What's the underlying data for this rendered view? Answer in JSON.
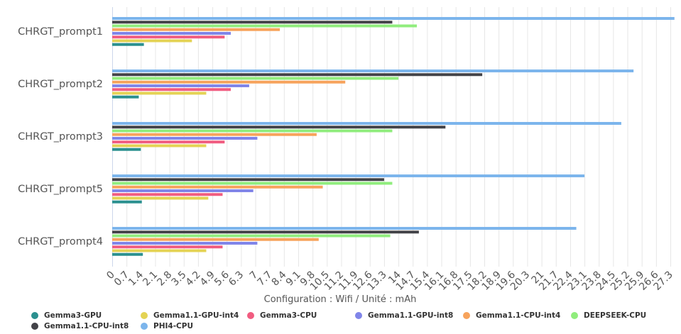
{
  "chart_data": {
    "type": "bar",
    "orientation": "horizontal",
    "title": "",
    "xlabel": "Configuration : Wifi / Unité : mAh",
    "ylabel": "",
    "xlim": [
      0,
      27.3
    ],
    "x_ticks": [
      "0",
      "0.7",
      "1.4",
      "2.1",
      "2.8",
      "3.5",
      "4.2",
      "4.9",
      "5.6",
      "6.3",
      "7",
      "7.7",
      "8.4",
      "9.1",
      "9.8",
      "10.5",
      "11.2",
      "11.9",
      "12.6",
      "13.3",
      "14",
      "14.7",
      "15.4",
      "16.1",
      "16.8",
      "17.5",
      "18.2",
      "18.9",
      "19.6",
      "20.3",
      "21",
      "21.7",
      "22.4",
      "23.1",
      "23.8",
      "24.5",
      "25.2",
      "25.9",
      "26.6",
      "27.3"
    ],
    "grid": true,
    "legend_position": "bottom",
    "categories": [
      "CHRGT_prompt1",
      "CHRGT_prompt2",
      "CHRGT_prompt3",
      "CHRGT_prompt5",
      "CHRGT_prompt4"
    ],
    "series": [
      {
        "name": "PHI4-CPU",
        "color": "#7cb5ec",
        "values": [
          27.5,
          25.5,
          24.9,
          23.1,
          22.7
        ]
      },
      {
        "name": "Gemma1.1-CPU-int8",
        "color": "#434348",
        "values": [
          13.7,
          18.1,
          16.3,
          13.3,
          15.0
        ]
      },
      {
        "name": "DEEPSEEK-CPU",
        "color": "#90ed7d",
        "values": [
          14.9,
          14.0,
          13.7,
          13.7,
          13.6
        ]
      },
      {
        "name": "Gemma1.1-CPU-int4",
        "color": "#f7a35c",
        "values": [
          8.2,
          11.4,
          10.0,
          10.3,
          10.1
        ]
      },
      {
        "name": "Gemma1.1-GPU-int8",
        "color": "#8085e9",
        "values": [
          5.8,
          6.7,
          7.1,
          6.9,
          7.1
        ]
      },
      {
        "name": "Gemma3-CPU",
        "color": "#f15c80",
        "values": [
          5.5,
          5.8,
          5.5,
          5.4,
          5.4
        ]
      },
      {
        "name": "Gemma1.1-GPU-int4",
        "color": "#e4d354",
        "values": [
          3.9,
          4.6,
          4.6,
          4.7,
          4.6
        ]
      },
      {
        "name": "Gemma3-GPU",
        "color": "#2b908f",
        "values": [
          1.55,
          1.3,
          1.4,
          1.45,
          1.5
        ]
      }
    ]
  },
  "legend": {
    "items": [
      {
        "label": "Gemma3-GPU",
        "color": "#2b908f"
      },
      {
        "label": "Gemma1.1-GPU-int4",
        "color": "#e4d354"
      },
      {
        "label": "Gemma3-CPU",
        "color": "#f15c80"
      },
      {
        "label": "Gemma1.1-GPU-int8",
        "color": "#8085e9"
      },
      {
        "label": "Gemma1.1-CPU-int4",
        "color": "#f7a35c"
      },
      {
        "label": "DEEPSEEK-CPU",
        "color": "#90ed7d"
      },
      {
        "label": "Gemma1.1-CPU-int8",
        "color": "#434348"
      },
      {
        "label": "PHI4-CPU",
        "color": "#7cb5ec"
      }
    ]
  }
}
